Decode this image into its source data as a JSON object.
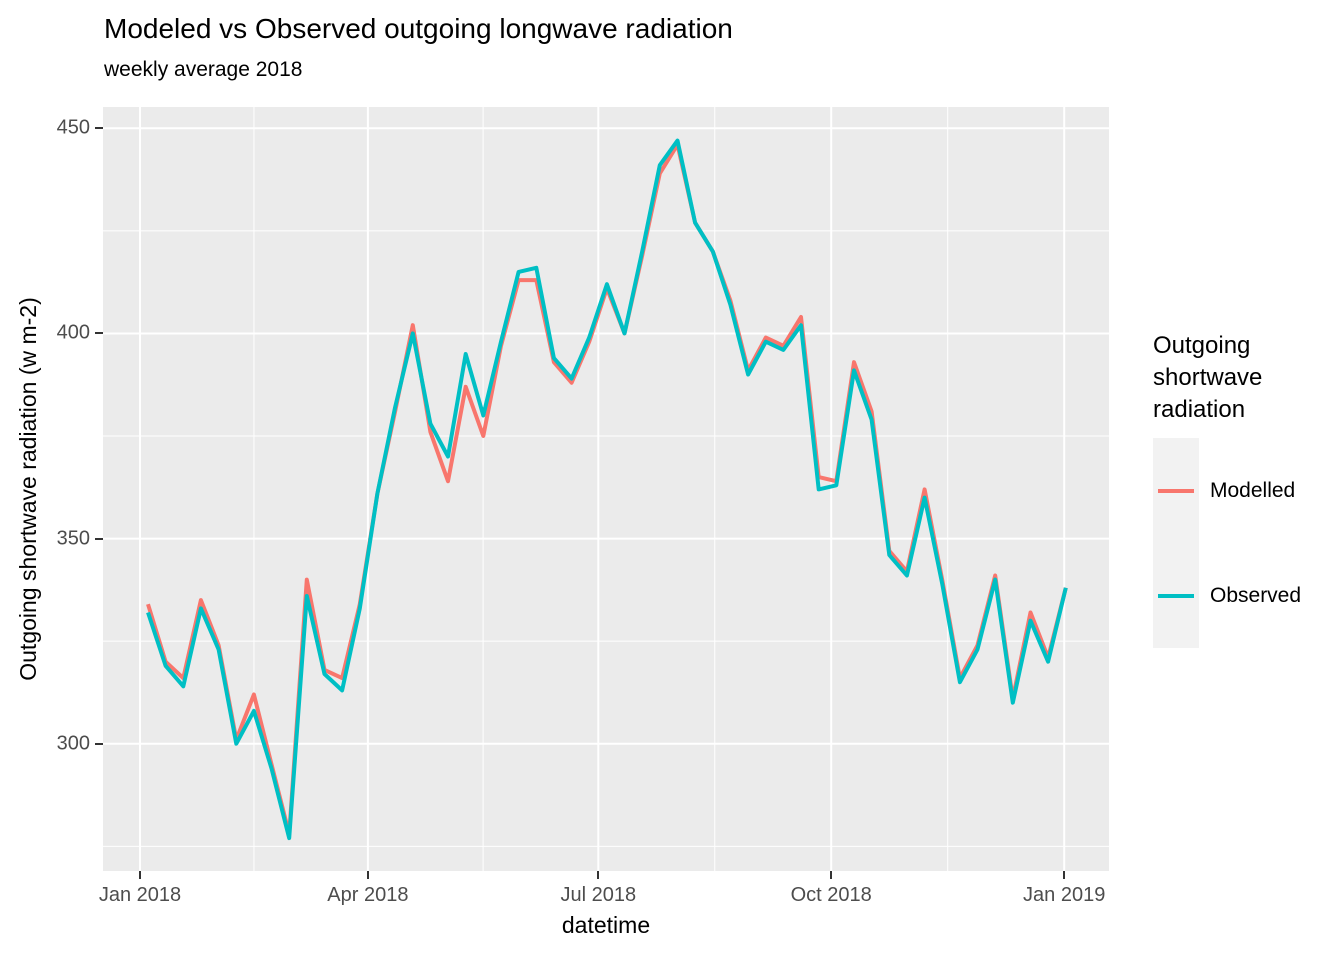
{
  "title": "Modeled vs Observed outgoing longwave radiation",
  "subtitle": "weekly average 2018",
  "x_axis": {
    "title": "datetime",
    "tick_labels": [
      "Jan 2018",
      "Apr 2018",
      "Jul 2018",
      "Oct 2018",
      "Jan 2019"
    ]
  },
  "y_axis": {
    "title": "Outgoing shortwave radiation (w m-2)",
    "tick_labels": [
      "450",
      "400",
      "350",
      "300"
    ],
    "tick_values": [
      450,
      400,
      350,
      300
    ]
  },
  "legend": {
    "title": "Outgoing shortwave radiation",
    "items": [
      {
        "label": "Modelled",
        "color": "#F8766D"
      },
      {
        "label": "Observed",
        "color": "#00BFC4"
      }
    ]
  },
  "colors": {
    "panel_background": "#EBEBEB",
    "gridline": "#FFFFFF",
    "legend_key_background": "#F2F2F2",
    "tick_mark": "#333333",
    "tick_label": "#4D4D4D",
    "modelled": "#F8766D",
    "observed": "#00BFC4"
  },
  "chart_data": {
    "type": "line",
    "title": "Modeled vs Observed outgoing longwave radiation",
    "subtitle": "weekly average 2018",
    "xlabel": "datetime",
    "ylabel": "Outgoing shortwave radiation (w m-2)",
    "x_unit": "week of 2018",
    "x": [
      1,
      2,
      3,
      4,
      5,
      6,
      7,
      8,
      9,
      10,
      11,
      12,
      13,
      14,
      15,
      16,
      17,
      18,
      19,
      20,
      21,
      22,
      23,
      24,
      25,
      26,
      27,
      28,
      29,
      30,
      31,
      32,
      33,
      34,
      35,
      36,
      37,
      38,
      39,
      40,
      41,
      42,
      43,
      44,
      45,
      46,
      47,
      48,
      49,
      50,
      51,
      52,
      53
    ],
    "series": [
      {
        "name": "Modelled",
        "color": "#F8766D",
        "values": [
          334,
          320,
          316,
          335,
          324,
          301,
          312,
          295,
          278,
          340,
          318,
          316,
          334,
          361,
          381,
          402,
          376,
          364,
          387,
          375,
          397,
          413,
          413,
          393,
          388,
          398,
          411,
          400,
          419,
          439,
          446,
          427,
          420,
          408,
          391,
          399,
          397,
          404,
          365,
          364,
          393,
          381,
          347,
          342,
          362,
          340,
          316,
          324,
          341,
          311,
          332,
          321,
          338
        ]
      },
      {
        "name": "Observed",
        "color": "#00BFC4",
        "values": [
          332,
          319,
          314,
          333,
          323,
          300,
          308,
          294,
          277,
          336,
          317,
          313,
          333,
          361,
          382,
          400,
          378,
          370,
          395,
          380,
          398,
          415,
          416,
          394,
          389,
          399,
          412,
          400,
          420,
          441,
          447,
          427,
          420,
          407,
          390,
          398,
          396,
          402,
          362,
          363,
          391,
          379,
          346,
          341,
          360,
          339,
          315,
          323,
          340,
          310,
          330,
          320,
          338
        ]
      }
    ],
    "ylim": [
      269,
      455
    ],
    "x_tick_labels": [
      "Jan 2018",
      "Apr 2018",
      "Jul 2018",
      "Oct 2018",
      "Jan 2019"
    ],
    "y_tick_values": [
      450,
      400,
      350,
      300
    ],
    "y_minor_tick_values": [
      425,
      375,
      325,
      275
    ],
    "grid": true,
    "legend_position": "right"
  }
}
